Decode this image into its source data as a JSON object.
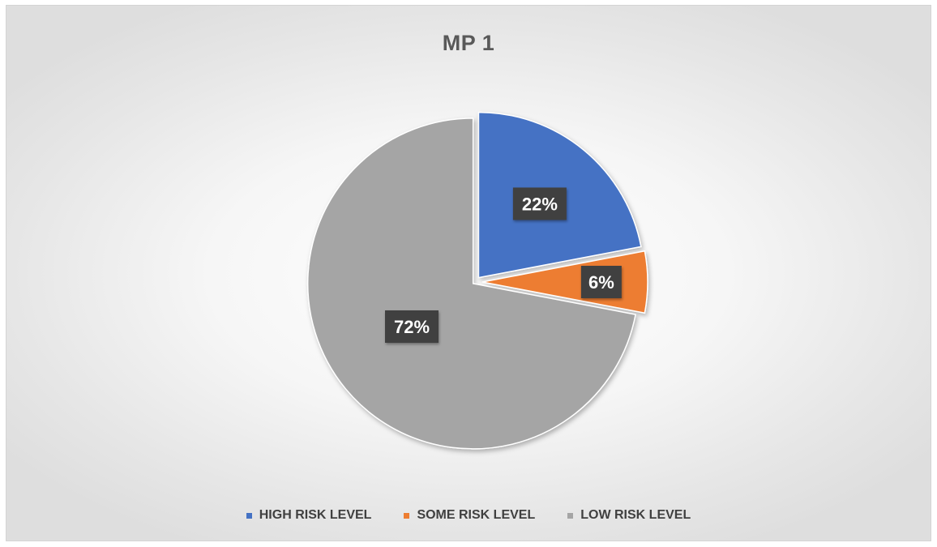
{
  "chart_data": {
    "type": "pie",
    "title": "MP 1",
    "categories": [
      "HIGH RISK LEVEL",
      "SOME RISK LEVEL",
      "LOW RISK LEVEL"
    ],
    "values": [
      22,
      6,
      72
    ],
    "labels": [
      "22%",
      "6%",
      "72%"
    ],
    "colors": [
      "#4472C4",
      "#ED7D31",
      "#A5A5A5"
    ],
    "legend_position": "bottom",
    "exploded": true
  }
}
